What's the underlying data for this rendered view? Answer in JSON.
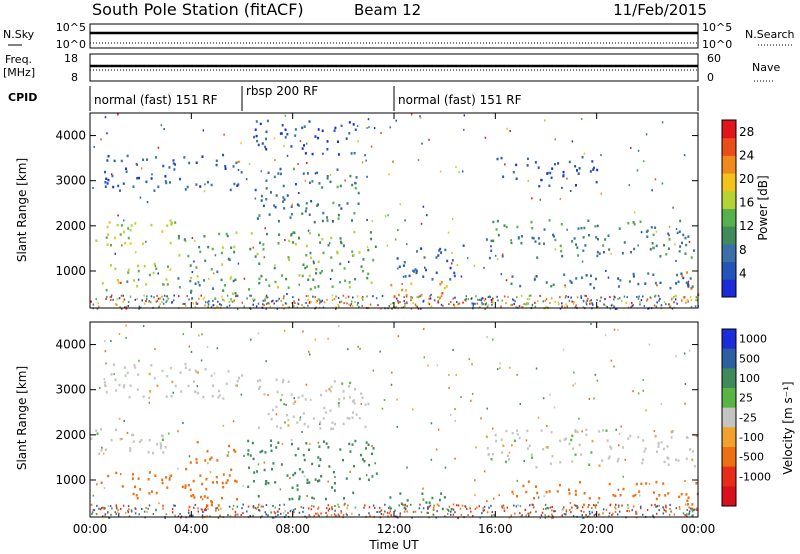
{
  "header": {
    "station": "South Pole Station (fitACF)",
    "beam": "Beam 12",
    "date": "11/Feb/2015"
  },
  "labels": {
    "nsky": "N.Sky",
    "freq": "Freq.",
    "freq_unit": "[MHz]",
    "cpid": "CPID",
    "nsearch": "N.Search",
    "nave": "Nave"
  },
  "mini_axes": {
    "sky_ticks": [
      "10^5",
      "10^0"
    ],
    "freq_ticks": [
      "18",
      "8"
    ],
    "nave_ticks": [
      "60",
      "0"
    ]
  },
  "cpid_segments": [
    {
      "label": "normal (fast) 151 RF",
      "start": 0,
      "end": 6
    },
    {
      "label": "rbsp 200 RF",
      "start": 6,
      "end": 12
    },
    {
      "label": "normal (fast) 151 RF",
      "start": 12,
      "end": 24
    }
  ],
  "colors": {
    "power": [
      "#1c2bd9",
      "#2255b8",
      "#3a6fa8",
      "#3f8c5a",
      "#56b04b",
      "#b5d335",
      "#f3c21b",
      "#f08a1d",
      "#ea4d1a",
      "#e0141a"
    ],
    "velocity": [
      "#1c2bd9",
      "#2c5fa0",
      "#3f8a5a",
      "#58b544",
      "#c4c4c0",
      "#f0a22c",
      "#ee6f12",
      "#e72d18",
      "#d9101c"
    ]
  },
  "chart_data": [
    {
      "type": "heatmap",
      "name": "power",
      "xlabel": "",
      "ylabel": "Slant Range [km]",
      "xlim": [
        0,
        24
      ],
      "ylim": [
        180,
        4500
      ],
      "y_ticks": [
        1000,
        2000,
        3000,
        4000
      ],
      "colorbar": {
        "label": "Power [dB]",
        "ticks": [
          4,
          8,
          12,
          16,
          20,
          24,
          28
        ],
        "range": [
          0,
          30
        ]
      },
      "regions": [
        {
          "t0": 0.0,
          "t1": 3.4,
          "r0": 1550,
          "r1": 2150,
          "v": 17
        },
        {
          "t0": 0.3,
          "t1": 3.2,
          "r0": 600,
          "r1": 1200,
          "v": 15
        },
        {
          "t0": 3.4,
          "t1": 5.8,
          "r0": 400,
          "r1": 1900,
          "v": 12
        },
        {
          "t0": 0.5,
          "t1": 6.0,
          "r0": 2800,
          "r1": 3600,
          "v": 5
        },
        {
          "t0": 6.2,
          "t1": 11.3,
          "r0": 600,
          "r1": 1900,
          "v": 13
        },
        {
          "t0": 6.5,
          "t1": 11.0,
          "r0": 2100,
          "r1": 3300,
          "v": 9
        },
        {
          "t0": 6.3,
          "t1": 10.5,
          "r0": 3600,
          "r1": 4400,
          "v": 5
        },
        {
          "t0": 11.8,
          "t1": 14.3,
          "r0": 380,
          "r1": 800,
          "v": 22
        },
        {
          "t0": 12.0,
          "t1": 14.8,
          "r0": 800,
          "r1": 1600,
          "v": 6
        },
        {
          "t0": 15.6,
          "t1": 24.0,
          "r0": 1300,
          "r1": 2150,
          "v": 10
        },
        {
          "t0": 16.5,
          "t1": 24.0,
          "r0": 600,
          "r1": 1000,
          "v": 7
        },
        {
          "t0": 16.0,
          "t1": 20.0,
          "r0": 2900,
          "r1": 3550,
          "v": 4
        },
        {
          "t0": 23.3,
          "t1": 24.0,
          "r0": 350,
          "r1": 1000,
          "v": 24
        }
      ]
    },
    {
      "type": "heatmap",
      "name": "velocity",
      "xlabel": "Time UT",
      "ylabel": "Slant Range [km]",
      "xlim": [
        0,
        24
      ],
      "ylim": [
        180,
        4500
      ],
      "x_ticks": [
        "00:00",
        "04:00",
        "08:00",
        "12:00",
        "16:00",
        "20:00",
        "00:00"
      ],
      "y_ticks": [
        1000,
        2000,
        3000,
        4000
      ],
      "colorbar": {
        "label": "Velocity [m s⁻¹]",
        "ticks": [
          "1000",
          "500",
          "100",
          "25",
          "-25",
          "-100",
          "-500",
          "-1000"
        ]
      },
      "regions": [
        {
          "t0": 0.0,
          "t1": 3.4,
          "r0": 1550,
          "r1": 2150,
          "v": 0
        },
        {
          "t0": 0.3,
          "t1": 3.2,
          "r0": 600,
          "r1": 1200,
          "v": -300
        },
        {
          "t0": 3.4,
          "t1": 5.8,
          "r0": 400,
          "r1": 1900,
          "v": -200
        },
        {
          "t0": 0.5,
          "t1": 6.0,
          "r0": 2800,
          "r1": 3600,
          "v": 0
        },
        {
          "t0": 6.2,
          "t1": 11.3,
          "r0": 600,
          "r1": 1900,
          "v": 200
        },
        {
          "t0": 6.5,
          "t1": 11.0,
          "r0": 2100,
          "r1": 3300,
          "v": 0
        },
        {
          "t0": 11.8,
          "t1": 14.3,
          "r0": 380,
          "r1": 800,
          "v": 150
        },
        {
          "t0": 15.6,
          "t1": 24.0,
          "r0": 1300,
          "r1": 2150,
          "v": 0
        },
        {
          "t0": 16.5,
          "t1": 24.0,
          "r0": 600,
          "r1": 1000,
          "v": -300
        },
        {
          "t0": 23.3,
          "t1": 24.0,
          "r0": 350,
          "r1": 1000,
          "v": -200
        }
      ]
    }
  ]
}
